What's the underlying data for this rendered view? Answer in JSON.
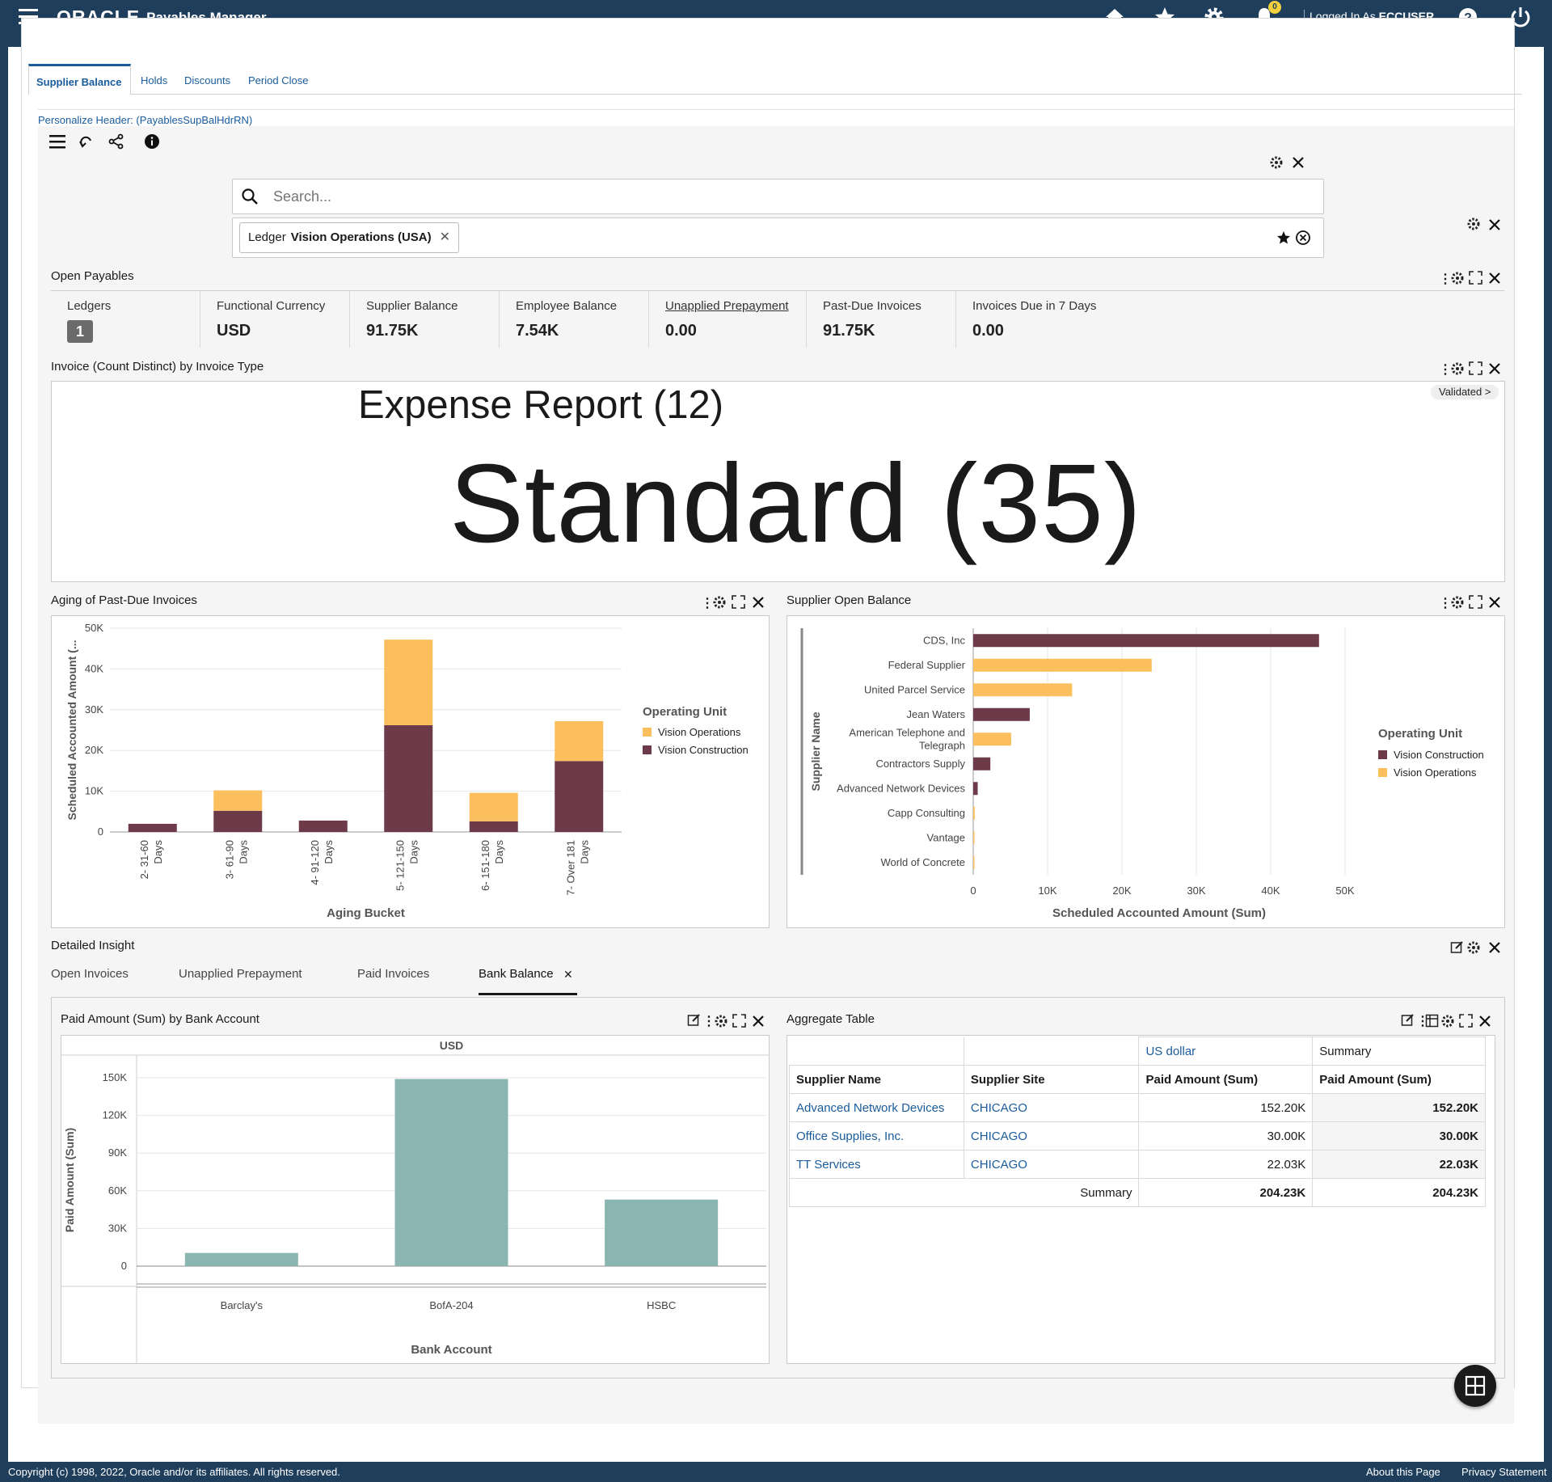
{
  "header": {
    "brand": "ORACLE",
    "app_title": "Payables Manager",
    "notification_count": "0",
    "logged_in_prefix": "Logged In As",
    "username": "ECCUSER"
  },
  "top_tabs": [
    {
      "label": "Supplier Balance"
    },
    {
      "label": "Holds"
    },
    {
      "label": "Discounts"
    },
    {
      "label": "Period Close"
    }
  ],
  "personalize_header": "Personalize Header: (PayablesSupBalHdrRN)",
  "search": {
    "placeholder": "Search..."
  },
  "filter_chip": {
    "label": "Ledger",
    "value": "Vision Operations (USA)"
  },
  "open_payables": {
    "title": "Open Payables",
    "tiles": [
      {
        "label": "Ledgers",
        "value": "1"
      },
      {
        "label": "Functional Currency",
        "value": "USD"
      },
      {
        "label": "Supplier Balance",
        "value": "91.75K"
      },
      {
        "label": "Employee Balance",
        "value": "7.54K"
      },
      {
        "label": "Unapplied Prepayment",
        "value": "0.00"
      },
      {
        "label": "Past-Due Invoices",
        "value": "91.75K"
      },
      {
        "label": "Invoices Due in 7 Days",
        "value": "0.00"
      }
    ]
  },
  "invoice_type": {
    "title": "Invoice (Count Distinct) by Invoice Type",
    "badge": "Validated >",
    "words": [
      {
        "text": "Expense Report (12)"
      },
      {
        "text": "Standard (35)"
      }
    ]
  },
  "aging_title": "Aging of Past-Due Invoices",
  "supplier_open_balance_title": "Supplier Open Balance",
  "detailed_insight": {
    "title": "Detailed Insight",
    "tabs": [
      {
        "label": "Open Invoices"
      },
      {
        "label": "Unapplied Prepayment"
      },
      {
        "label": "Paid Invoices"
      },
      {
        "label": "Bank Balance"
      }
    ]
  },
  "paid_amount_title": "Paid Amount (Sum) by Bank Account",
  "aggregate_table": {
    "title": "Aggregate Table",
    "group_headers": [
      "US dollar",
      "Summary"
    ],
    "columns": [
      "Supplier Name",
      "Supplier Site",
      "Paid Amount (Sum)",
      "Paid Amount (Sum)"
    ],
    "rows": [
      {
        "supplier": "Advanced Network Devices",
        "site": "CHICAGO",
        "paid": "152.20K",
        "summary": "152.20K"
      },
      {
        "supplier": "Office Supplies, Inc.",
        "site": "CHICAGO",
        "paid": "30.00K",
        "summary": "30.00K"
      },
      {
        "supplier": "TT Services",
        "site": "CHICAGO",
        "paid": "22.03K",
        "summary": "22.03K"
      }
    ],
    "summary_row": {
      "label": "Summary",
      "paid": "204.23K",
      "summary": "204.23K"
    }
  },
  "footer": {
    "copyright": "Copyright (c) 1998, 2022, Oracle and/or its affiliates. All rights reserved.",
    "links": [
      "About this Page",
      "Privacy Statement"
    ]
  },
  "colors": {
    "header_bg": "#1e3e5c",
    "link_blue": "#1a5c9b",
    "vision_operations": "#fbbf5d",
    "vision_construction": "#6d3a49",
    "bank_bar": "#8ab5b0"
  },
  "chart_data": [
    {
      "type": "bar",
      "stacked": true,
      "title": "Aging of Past-Due Invoices",
      "xlabel": "Aging Bucket",
      "ylabel": "Scheduled Accounted Amount (...",
      "categories": [
        "2- 31-60 Days",
        "3- 61-90 Days",
        "4- 91-120 Days",
        "5- 121-150 Days",
        "6- 151-180 Days",
        "7- Over 181 Days"
      ],
      "y_ticks": [
        "0",
        "10K",
        "20K",
        "30K",
        "40K",
        "50K"
      ],
      "ylim": [
        0,
        50000
      ],
      "legend_title": "Operating Unit",
      "legend_position": "right",
      "series": [
        {
          "name": "Vision Construction",
          "color": "#6d3a49",
          "values": [
            2000,
            5200,
            2800,
            26200,
            2600,
            17400
          ]
        },
        {
          "name": "Vision Operations",
          "color": "#fbbf5d",
          "values": [
            0,
            5000,
            0,
            21000,
            7000,
            9800
          ]
        }
      ]
    },
    {
      "type": "bar",
      "orientation": "horizontal",
      "title": "Supplier Open Balance",
      "xlabel": "Scheduled Accounted Amount (Sum)",
      "ylabel": "Supplier Name",
      "categories": [
        "CDS, Inc",
        "Federal Supplier",
        "United Parcel Service",
        "Jean Waters",
        "American Telephone and Telegraph",
        "Contractors Supply",
        "Advanced Network Devices",
        "Capp Consulting",
        "Vantage",
        "World of Concrete"
      ],
      "x_ticks": [
        "0",
        "10K",
        "20K",
        "30K",
        "40K",
        "50K"
      ],
      "xlim": [
        0,
        50000
      ],
      "legend_title": "Operating Unit",
      "legend_position": "right",
      "series": [
        {
          "name": "Vision Construction",
          "color": "#6d3a49",
          "values": [
            46500,
            0,
            0,
            7600,
            0,
            2300,
            600,
            0,
            0,
            0
          ]
        },
        {
          "name": "Vision Operations",
          "color": "#fbbf5d",
          "values": [
            0,
            24000,
            13300,
            0,
            5100,
            0,
            0,
            200,
            150,
            100
          ]
        }
      ]
    },
    {
      "type": "bar",
      "title": "Paid Amount (Sum) by Bank Account",
      "xlabel": "Bank Account",
      "ylabel": "Paid Amount (Sum)",
      "column_header": "USD",
      "categories": [
        "Barclay's",
        "BofA-204",
        "HSBC"
      ],
      "y_ticks": [
        "0",
        "30K",
        "60K",
        "90K",
        "120K",
        "150K"
      ],
      "ylim": [
        0,
        150000
      ],
      "series": [
        {
          "name": "",
          "color": "#8ab5b0",
          "values": [
            10500,
            149000,
            53000
          ]
        }
      ]
    }
  ]
}
